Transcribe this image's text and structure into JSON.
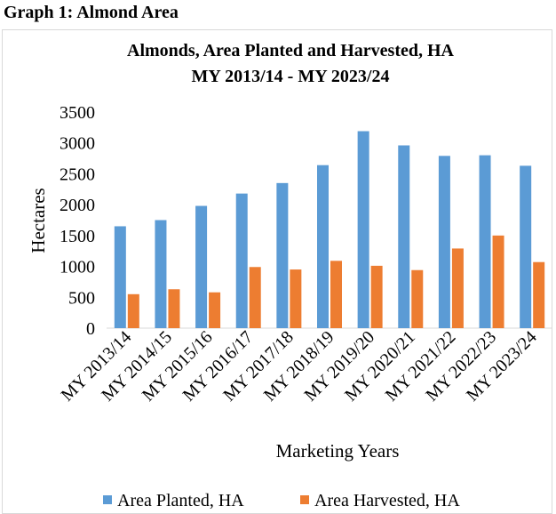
{
  "heading": "Graph 1: Almond Area",
  "chart_data": {
    "type": "bar",
    "title": [
      "Almonds, Area Planted and Harvested, HA",
      "MY 2013/14 - MY 2023/24"
    ],
    "xlabel": "Marketing Years",
    "ylabel": "Hectares",
    "ylim": [
      0,
      3500
    ],
    "yticks": [
      "0",
      "500",
      "1000",
      "1500",
      "2000",
      "2500",
      "3000",
      "3500"
    ],
    "grid": false,
    "legend_position": "bottom",
    "categories": [
      "MY 2013/14",
      "MY 2014/15",
      "MY 2015/16",
      "MY 2016/17",
      "MY 2017/18",
      "MY 2018/19",
      "MY 2019/20",
      "MY 2020/21",
      "MY 2021/22",
      "MY 2022/23",
      "MY 2023/24"
    ],
    "series": [
      {
        "name": "Area Planted, HA",
        "color": "#5b9bd5",
        "values": [
          1650,
          1750,
          1980,
          2180,
          2350,
          2640,
          3190,
          2960,
          2790,
          2800,
          2630
        ]
      },
      {
        "name": "Area Harvested, HA",
        "color": "#ed7d31",
        "values": [
          550,
          630,
          580,
          990,
          950,
          1090,
          1010,
          940,
          1290,
          1500,
          1070
        ]
      }
    ]
  }
}
